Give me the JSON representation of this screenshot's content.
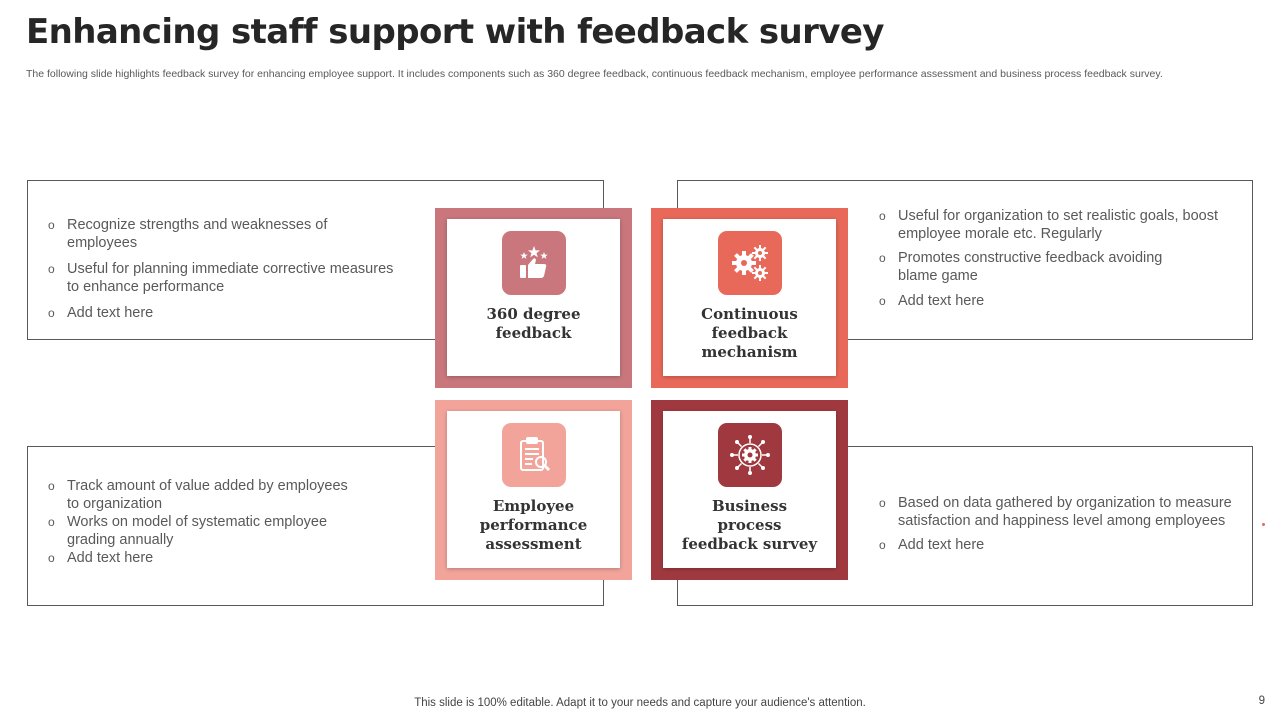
{
  "slide": {
    "title": "Enhancing staff support with feedback survey",
    "subtitle": "The following slide highlights feedback survey for enhancing employee support. It includes components such as 360 degree feedback, continuous feedback mechanism, employee performance assessment and business process feedback survey.",
    "footer": "This slide is 100% editable. Adapt it to your needs and capture your audience's attention.",
    "page_number": "9"
  },
  "colors": {
    "card_360": "#c9777c",
    "card_continuous": "#e8695a",
    "card_assessment": "#f2a49b",
    "card_business": "#a0393f",
    "accent_dot": "#e8695a"
  },
  "cards": [
    {
      "label": "360 degree feedback",
      "icon": "thumbs-up-stars-icon"
    },
    {
      "label": "Continuous feedback mechanism",
      "icon": "gears-icon"
    },
    {
      "label": "Employee performance assessment",
      "icon": "clipboard-search-icon"
    },
    {
      "label": "Business process feedback survey",
      "icon": "network-gear-icon"
    }
  ],
  "boxes": {
    "top_left": [
      "Recognize strengths and weaknesses of employees",
      "Useful for planning immediate corrective measures to enhance performance",
      "Add text here"
    ],
    "top_right": [
      "Useful for organization to set realistic goals, boost employee morale etc. Regularly",
      "Promotes constructive feedback avoiding blame game",
      "Add text here"
    ],
    "bottom_left": [
      "Track amount of value added by employees to organization",
      "Works on model of systematic employee grading annually",
      "Add text here"
    ],
    "bottom_right": [
      "Based on data gathered by organization to measure satisfaction and happiness level among employees",
      "Add text here"
    ]
  }
}
